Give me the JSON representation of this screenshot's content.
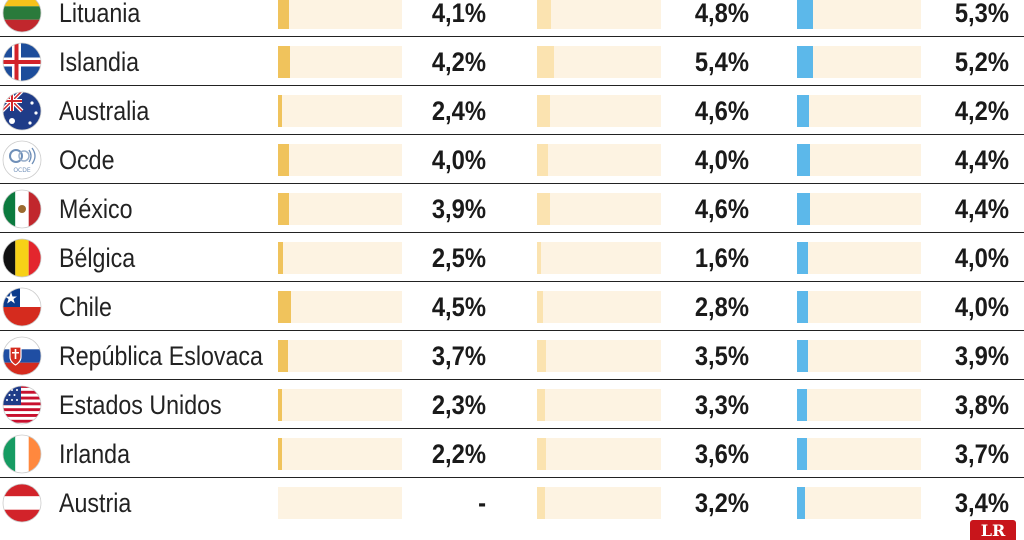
{
  "chart_data": {
    "type": "table",
    "series_colors": [
      "#f0c35c",
      "#fbe3b0",
      "#5cb8ea"
    ],
    "rows": [
      {
        "country": "Lituania",
        "flag": "lithuania-flag-icon",
        "values": [
          4.1,
          4.8,
          5.3
        ],
        "labels": [
          "4,1%",
          "4,8%",
          "5,3%"
        ]
      },
      {
        "country": "Islandia",
        "flag": "iceland-flag-icon",
        "values": [
          4.2,
          5.4,
          5.2
        ],
        "labels": [
          "4,2%",
          "5,4%",
          "5,2%"
        ]
      },
      {
        "country": "Australia",
        "flag": "australia-flag-icon",
        "values": [
          2.4,
          4.6,
          4.2
        ],
        "labels": [
          "2,4%",
          "4,6%",
          "4,2%"
        ]
      },
      {
        "country": "Ocde",
        "flag": "oecd-logo-icon",
        "values": [
          4.0,
          4.0,
          4.4
        ],
        "labels": [
          "4,0%",
          "4,0%",
          "4,4%"
        ]
      },
      {
        "country": "México",
        "flag": "mexico-flag-icon",
        "values": [
          3.9,
          4.6,
          4.4
        ],
        "labels": [
          "3,9%",
          "4,6%",
          "4,4%"
        ]
      },
      {
        "country": "Bélgica",
        "flag": "belgium-flag-icon",
        "values": [
          2.5,
          1.6,
          4.0
        ],
        "labels": [
          "2,5%",
          "1,6%",
          "4,0%"
        ]
      },
      {
        "country": "Chile",
        "flag": "chile-flag-icon",
        "values": [
          4.5,
          2.8,
          4.0
        ],
        "labels": [
          "4,5%",
          "2,8%",
          "4,0%"
        ]
      },
      {
        "country": "República Eslovaca",
        "flag": "slovakia-flag-icon",
        "values": [
          3.7,
          3.5,
          3.9
        ],
        "labels": [
          "3,7%",
          "3,5%",
          "3,9%"
        ]
      },
      {
        "country": "Estados Unidos",
        "flag": "usa-flag-icon",
        "values": [
          2.3,
          3.3,
          3.8
        ],
        "labels": [
          "2,3%",
          "3,3%",
          "3,8%"
        ]
      },
      {
        "country": "Irlanda",
        "flag": "ireland-flag-icon",
        "values": [
          2.2,
          3.6,
          3.7
        ],
        "labels": [
          "2,2%",
          "3,6%",
          "3,7%"
        ]
      },
      {
        "country": "Austria",
        "flag": "austria-flag-icon",
        "values": [
          null,
          3.2,
          3.4
        ],
        "labels": [
          "-",
          "3,2%",
          "3,4%"
        ]
      }
    ]
  },
  "logo": {
    "text": "LR",
    "name": "publisher-logo-icon"
  }
}
